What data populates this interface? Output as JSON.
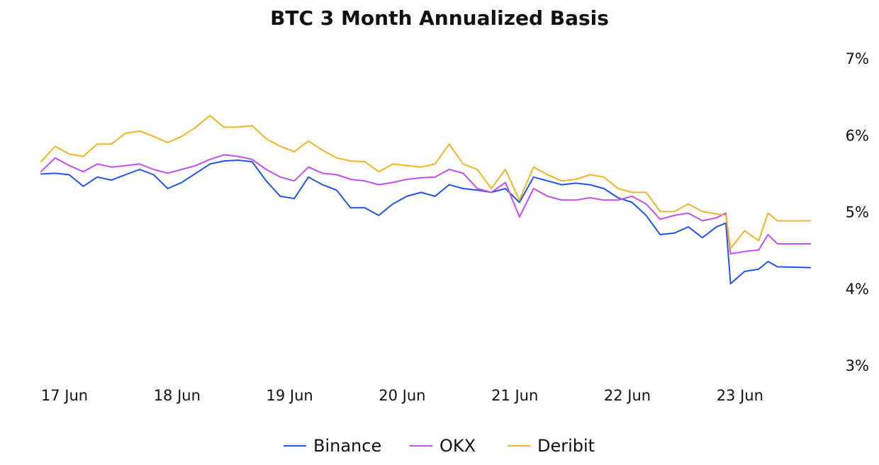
{
  "chart_data": {
    "type": "line",
    "title": "BTC 3 Month Annualized Basis",
    "xlabel": "",
    "ylabel": "",
    "x_tick_labels": [
      "17 Jun",
      "18 Jun",
      "19 Jun",
      "20 Jun",
      "21 Jun",
      "22 Jun",
      "23 Jun"
    ],
    "y_tick_labels": [
      "3%",
      "4%",
      "5%",
      "6%",
      "7%"
    ],
    "ylim": [
      3,
      7
    ],
    "y_unit": "%",
    "y_axis_side": "right",
    "grid": false,
    "legend_position": "bottom-center",
    "x_domain": [
      "16 Jun 19:00",
      "23 Jun 15:00"
    ],
    "series": [
      {
        "name": "Binance",
        "color": "#2255e3",
        "points": [
          [
            "16 Jun 19:00",
            5.49
          ],
          [
            "16 Jun 22:00",
            5.5
          ],
          [
            "17 Jun 01:00",
            5.48
          ],
          [
            "17 Jun 04:00",
            5.33
          ],
          [
            "17 Jun 07:00",
            5.45
          ],
          [
            "17 Jun 10:00",
            5.41
          ],
          [
            "17 Jun 13:00",
            5.48
          ],
          [
            "17 Jun 16:00",
            5.55
          ],
          [
            "17 Jun 19:00",
            5.48
          ],
          [
            "17 Jun 22:00",
            5.3
          ],
          [
            "18 Jun 01:00",
            5.38
          ],
          [
            "18 Jun 04:00",
            5.5
          ],
          [
            "18 Jun 07:00",
            5.62
          ],
          [
            "18 Jun 10:00",
            5.66
          ],
          [
            "18 Jun 13:00",
            5.67
          ],
          [
            "18 Jun 16:00",
            5.65
          ],
          [
            "18 Jun 19:00",
            5.4
          ],
          [
            "18 Jun 22:00",
            5.2
          ],
          [
            "19 Jun 01:00",
            5.17
          ],
          [
            "19 Jun 04:00",
            5.45
          ],
          [
            "19 Jun 07:00",
            5.35
          ],
          [
            "19 Jun 10:00",
            5.28
          ],
          [
            "19 Jun 13:00",
            5.05
          ],
          [
            "19 Jun 16:00",
            5.05
          ],
          [
            "19 Jun 19:00",
            4.95
          ],
          [
            "19 Jun 22:00",
            5.1
          ],
          [
            "20 Jun 01:00",
            5.2
          ],
          [
            "20 Jun 04:00",
            5.25
          ],
          [
            "20 Jun 07:00",
            5.2
          ],
          [
            "20 Jun 10:00",
            5.35
          ],
          [
            "20 Jun 13:00",
            5.3
          ],
          [
            "20 Jun 16:00",
            5.28
          ],
          [
            "20 Jun 19:00",
            5.25
          ],
          [
            "20 Jun 22:00",
            5.3
          ],
          [
            "21 Jun 01:00",
            5.12
          ],
          [
            "21 Jun 04:00",
            5.45
          ],
          [
            "21 Jun 07:00",
            5.4
          ],
          [
            "21 Jun 10:00",
            5.35
          ],
          [
            "21 Jun 13:00",
            5.37
          ],
          [
            "21 Jun 16:00",
            5.35
          ],
          [
            "21 Jun 19:00",
            5.3
          ],
          [
            "21 Jun 22:00",
            5.18
          ],
          [
            "22 Jun 01:00",
            5.12
          ],
          [
            "22 Jun 04:00",
            4.95
          ],
          [
            "22 Jun 07:00",
            4.7
          ],
          [
            "22 Jun 10:00",
            4.72
          ],
          [
            "22 Jun 13:00",
            4.8
          ],
          [
            "22 Jun 16:00",
            4.66
          ],
          [
            "22 Jun 19:00",
            4.8
          ],
          [
            "22 Jun 21:00",
            4.85
          ],
          [
            "22 Jun 22:00",
            4.06
          ],
          [
            "23 Jun 01:00",
            4.22
          ],
          [
            "23 Jun 04:00",
            4.25
          ],
          [
            "23 Jun 06:00",
            4.35
          ],
          [
            "23 Jun 08:00",
            4.28
          ],
          [
            "23 Jun 15:00",
            4.27
          ]
        ]
      },
      {
        "name": "OKX",
        "color": "#c04ff0",
        "points": [
          [
            "16 Jun 19:00",
            5.52
          ],
          [
            "16 Jun 22:00",
            5.7
          ],
          [
            "17 Jun 01:00",
            5.6
          ],
          [
            "17 Jun 04:00",
            5.52
          ],
          [
            "17 Jun 07:00",
            5.62
          ],
          [
            "17 Jun 10:00",
            5.58
          ],
          [
            "17 Jun 13:00",
            5.6
          ],
          [
            "17 Jun 16:00",
            5.62
          ],
          [
            "17 Jun 19:00",
            5.55
          ],
          [
            "17 Jun 22:00",
            5.5
          ],
          [
            "18 Jun 01:00",
            5.55
          ],
          [
            "18 Jun 04:00",
            5.6
          ],
          [
            "18 Jun 07:00",
            5.68
          ],
          [
            "18 Jun 10:00",
            5.74
          ],
          [
            "18 Jun 13:00",
            5.72
          ],
          [
            "18 Jun 16:00",
            5.68
          ],
          [
            "18 Jun 19:00",
            5.55
          ],
          [
            "18 Jun 22:00",
            5.45
          ],
          [
            "19 Jun 01:00",
            5.4
          ],
          [
            "19 Jun 04:00",
            5.58
          ],
          [
            "19 Jun 07:00",
            5.5
          ],
          [
            "19 Jun 10:00",
            5.48
          ],
          [
            "19 Jun 13:00",
            5.42
          ],
          [
            "19 Jun 16:00",
            5.4
          ],
          [
            "19 Jun 19:00",
            5.35
          ],
          [
            "19 Jun 22:00",
            5.38
          ],
          [
            "20 Jun 01:00",
            5.42
          ],
          [
            "20 Jun 04:00",
            5.44
          ],
          [
            "20 Jun 07:00",
            5.45
          ],
          [
            "20 Jun 10:00",
            5.55
          ],
          [
            "20 Jun 13:00",
            5.5
          ],
          [
            "20 Jun 16:00",
            5.3
          ],
          [
            "20 Jun 19:00",
            5.25
          ],
          [
            "20 Jun 22:00",
            5.38
          ],
          [
            "21 Jun 01:00",
            4.93
          ],
          [
            "21 Jun 04:00",
            5.3
          ],
          [
            "21 Jun 07:00",
            5.2
          ],
          [
            "21 Jun 10:00",
            5.15
          ],
          [
            "21 Jun 13:00",
            5.15
          ],
          [
            "21 Jun 16:00",
            5.18
          ],
          [
            "21 Jun 19:00",
            5.15
          ],
          [
            "21 Jun 22:00",
            5.15
          ],
          [
            "22 Jun 01:00",
            5.2
          ],
          [
            "22 Jun 04:00",
            5.1
          ],
          [
            "22 Jun 07:00",
            4.9
          ],
          [
            "22 Jun 10:00",
            4.95
          ],
          [
            "22 Jun 13:00",
            4.98
          ],
          [
            "22 Jun 16:00",
            4.88
          ],
          [
            "22 Jun 19:00",
            4.92
          ],
          [
            "22 Jun 21:00",
            4.98
          ],
          [
            "22 Jun 22:00",
            4.45
          ],
          [
            "23 Jun 01:00",
            4.48
          ],
          [
            "23 Jun 04:00",
            4.5
          ],
          [
            "23 Jun 06:00",
            4.7
          ],
          [
            "23 Jun 08:00",
            4.58
          ],
          [
            "23 Jun 15:00",
            4.58
          ]
        ]
      },
      {
        "name": "Deribit",
        "color": "#f0b429",
        "points": [
          [
            "16 Jun 19:00",
            5.65
          ],
          [
            "16 Jun 22:00",
            5.85
          ],
          [
            "17 Jun 01:00",
            5.75
          ],
          [
            "17 Jun 04:00",
            5.72
          ],
          [
            "17 Jun 07:00",
            5.88
          ],
          [
            "17 Jun 10:00",
            5.88
          ],
          [
            "17 Jun 13:00",
            6.02
          ],
          [
            "17 Jun 16:00",
            6.05
          ],
          [
            "17 Jun 19:00",
            5.98
          ],
          [
            "17 Jun 22:00",
            5.9
          ],
          [
            "18 Jun 01:00",
            5.98
          ],
          [
            "18 Jun 04:00",
            6.1
          ],
          [
            "18 Jun 07:00",
            6.25
          ],
          [
            "18 Jun 10:00",
            6.1
          ],
          [
            "18 Jun 13:00",
            6.1
          ],
          [
            "18 Jun 16:00",
            6.12
          ],
          [
            "18 Jun 19:00",
            5.95
          ],
          [
            "18 Jun 22:00",
            5.85
          ],
          [
            "19 Jun 01:00",
            5.78
          ],
          [
            "19 Jun 04:00",
            5.92
          ],
          [
            "19 Jun 07:00",
            5.8
          ],
          [
            "19 Jun 10:00",
            5.7
          ],
          [
            "19 Jun 13:00",
            5.66
          ],
          [
            "19 Jun 16:00",
            5.65
          ],
          [
            "19 Jun 19:00",
            5.52
          ],
          [
            "19 Jun 22:00",
            5.62
          ],
          [
            "20 Jun 01:00",
            5.6
          ],
          [
            "20 Jun 04:00",
            5.58
          ],
          [
            "20 Jun 07:00",
            5.62
          ],
          [
            "20 Jun 10:00",
            5.88
          ],
          [
            "20 Jun 13:00",
            5.62
          ],
          [
            "20 Jun 16:00",
            5.55
          ],
          [
            "20 Jun 19:00",
            5.3
          ],
          [
            "20 Jun 22:00",
            5.55
          ],
          [
            "21 Jun 01:00",
            5.15
          ],
          [
            "21 Jun 04:00",
            5.58
          ],
          [
            "21 Jun 07:00",
            5.48
          ],
          [
            "21 Jun 10:00",
            5.4
          ],
          [
            "21 Jun 13:00",
            5.42
          ],
          [
            "21 Jun 16:00",
            5.48
          ],
          [
            "21 Jun 19:00",
            5.45
          ],
          [
            "21 Jun 22:00",
            5.3
          ],
          [
            "22 Jun 01:00",
            5.25
          ],
          [
            "22 Jun 04:00",
            5.25
          ],
          [
            "22 Jun 07:00",
            5.0
          ],
          [
            "22 Jun 10:00",
            5.0
          ],
          [
            "22 Jun 13:00",
            5.1
          ],
          [
            "22 Jun 16:00",
            5.0
          ],
          [
            "22 Jun 19:00",
            4.97
          ],
          [
            "22 Jun 21:00",
            4.95
          ],
          [
            "22 Jun 22:00",
            4.52
          ],
          [
            "23 Jun 01:00",
            4.75
          ],
          [
            "23 Jun 04:00",
            4.62
          ],
          [
            "23 Jun 06:00",
            4.98
          ],
          [
            "23 Jun 08:00",
            4.88
          ],
          [
            "23 Jun 15:00",
            4.88
          ]
        ]
      }
    ]
  }
}
